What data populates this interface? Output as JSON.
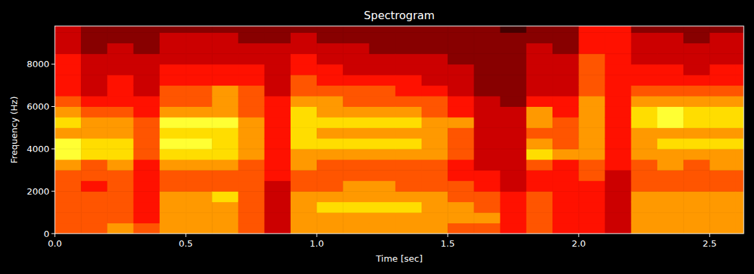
{
  "chart_data": {
    "type": "heatmap",
    "title": "Spectrogram",
    "x_label": "Time [sec]",
    "y_label": "Frequency (Hz)",
    "xlim": [
      0,
      2.63
    ],
    "ylim": [
      0,
      9800
    ],
    "xticks": [
      {
        "value": 0,
        "label": "0.0"
      },
      0.5,
      {
        "value": 1,
        "label": "1.0"
      },
      1.5,
      {
        "value": 2,
        "label": "2.0"
      },
      2.5
    ],
    "yticks": [
      0,
      2000,
      4000,
      6000,
      8000
    ],
    "zlim": [
      0,
      10
    ],
    "x_edges": [
      0,
      0.1,
      0.2,
      0.3,
      0.4,
      0.5,
      0.6,
      0.7,
      0.8,
      0.9,
      1.0,
      1.1,
      1.2,
      1.3,
      1.4,
      1.5,
      1.6,
      1.7,
      1.8,
      1.9,
      2.0,
      2.1,
      2.2,
      2.3,
      2.4,
      2.5,
      2.6,
      2.63
    ],
    "y_edges": [
      0,
      500,
      1000,
      1500,
      2000,
      2500,
      3000,
      3500,
      4000,
      4500,
      5000,
      5500,
      6000,
      6500,
      7000,
      7500,
      8000,
      8500,
      9000,
      9500,
      9800
    ],
    "cells": [
      [
        5,
        5,
        5,
        5,
        5,
        5,
        6,
        8,
        8,
        6,
        7,
        6,
        5,
        4,
        4,
        4,
        4,
        3,
        3,
        3
      ],
      [
        5,
        5,
        5,
        5,
        4,
        5,
        5,
        7,
        7,
        6,
        6,
        5,
        4,
        3,
        3,
        3,
        3,
        2,
        2,
        2
      ],
      [
        6,
        5,
        5,
        5,
        5,
        5,
        6,
        7,
        7,
        6,
        6,
        5,
        4,
        4,
        4,
        3,
        3,
        3,
        2,
        2
      ],
      [
        5,
        4,
        4,
        4,
        4,
        4,
        4,
        5,
        5,
        5,
        5,
        4,
        4,
        3,
        3,
        3,
        3,
        2,
        2,
        2
      ],
      [
        6,
        6,
        6,
        6,
        5,
        5,
        6,
        7,
        8,
        7,
        8,
        6,
        5,
        5,
        4,
        4,
        3,
        3,
        3,
        2
      ],
      [
        6,
        6,
        6,
        6,
        5,
        5,
        6,
        7,
        8,
        7,
        8,
        6,
        5,
        5,
        4,
        4,
        3,
        3,
        3,
        2
      ],
      [
        6,
        6,
        6,
        7,
        5,
        5,
        6,
        7,
        7,
        7,
        8,
        6,
        6,
        6,
        4,
        4,
        3,
        3,
        3,
        2
      ],
      [
        5,
        5,
        5,
        5,
        5,
        5,
        5,
        6,
        6,
        6,
        6,
        5,
        5,
        5,
        4,
        4,
        3,
        3,
        2,
        2
      ],
      [
        3,
        3,
        3,
        3,
        3,
        4,
        4,
        4,
        4,
        4,
        4,
        4,
        4,
        3,
        3,
        3,
        3,
        3,
        2,
        2
      ],
      [
        6,
        6,
        6,
        6,
        5,
        5,
        6,
        6,
        7,
        7,
        7,
        7,
        6,
        5,
        5,
        4,
        4,
        3,
        3,
        2
      ],
      [
        6,
        6,
        7,
        6,
        5,
        5,
        5,
        6,
        7,
        6,
        7,
        6,
        6,
        5,
        4,
        4,
        3,
        3,
        2,
        2
      ],
      [
        6,
        6,
        7,
        6,
        6,
        5,
        5,
        6,
        7,
        6,
        7,
        6,
        5,
        5,
        4,
        3,
        3,
        3,
        2,
        2
      ],
      [
        6,
        6,
        7,
        6,
        6,
        5,
        5,
        6,
        7,
        6,
        7,
        6,
        5,
        5,
        4,
        3,
        3,
        2,
        2,
        2
      ],
      [
        6,
        6,
        7,
        6,
        5,
        5,
        5,
        6,
        7,
        6,
        7,
        6,
        5,
        4,
        4,
        3,
        3,
        2,
        2,
        2
      ],
      [
        6,
        6,
        6,
        6,
        5,
        5,
        5,
        6,
        6,
        6,
        6,
        5,
        5,
        4,
        3,
        3,
        3,
        2,
        2,
        2
      ],
      [
        5,
        6,
        6,
        5,
        5,
        4,
        4,
        5,
        5,
        5,
        6,
        4,
        4,
        3,
        3,
        3,
        2,
        2,
        2,
        2
      ],
      [
        5,
        6,
        5,
        5,
        4,
        4,
        3,
        3,
        3,
        3,
        3,
        3,
        3,
        2,
        2,
        2,
        2,
        2,
        2,
        2
      ],
      [
        4,
        4,
        4,
        4,
        3,
        3,
        3,
        3,
        3,
        3,
        3,
        3,
        2,
        2,
        2,
        2,
        2,
        2,
        2,
        1
      ],
      [
        5,
        5,
        5,
        5,
        4,
        4,
        5,
        7,
        6,
        5,
        6,
        6,
        4,
        3,
        3,
        3,
        3,
        3,
        2,
        2
      ],
      [
        4,
        4,
        4,
        4,
        4,
        4,
        4,
        6,
        5,
        5,
        5,
        4,
        4,
        3,
        3,
        3,
        3,
        2,
        2,
        2
      ],
      [
        4,
        4,
        4,
        4,
        4,
        5,
        5,
        6,
        6,
        6,
        6,
        6,
        6,
        5,
        5,
        5,
        5,
        4,
        4,
        4
      ],
      [
        3,
        3,
        3,
        3,
        3,
        3,
        4,
        4,
        4,
        4,
        4,
        4,
        4,
        4,
        4,
        4,
        4,
        4,
        4,
        4
      ],
      [
        6,
        6,
        6,
        6,
        5,
        5,
        5,
        6,
        6,
        6,
        7,
        7,
        6,
        5,
        4,
        4,
        3,
        3,
        3,
        2
      ],
      [
        6,
        6,
        6,
        6,
        5,
        5,
        6,
        6,
        7,
        6,
        8,
        8,
        6,
        5,
        4,
        4,
        3,
        3,
        3,
        2
      ],
      [
        6,
        6,
        6,
        6,
        5,
        5,
        5,
        6,
        7,
        6,
        7,
        7,
        6,
        5,
        4,
        3,
        3,
        3,
        2,
        2
      ],
      [
        6,
        6,
        6,
        6,
        5,
        5,
        6,
        6,
        7,
        6,
        7,
        7,
        6,
        5,
        4,
        4,
        3,
        3,
        3,
        2
      ],
      [
        6,
        6,
        6,
        6,
        5,
        5,
        6,
        6,
        7,
        6,
        7,
        7,
        6,
        5,
        4,
        4,
        3,
        3,
        3,
        2
      ]
    ]
  }
}
